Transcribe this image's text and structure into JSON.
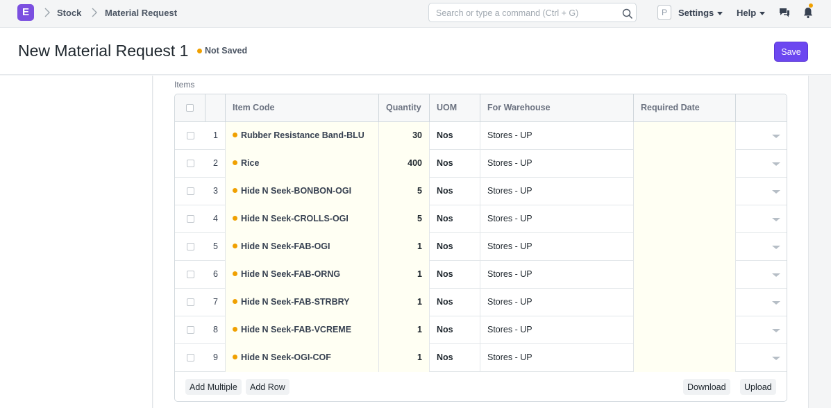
{
  "navbar": {
    "logo_letter": "E",
    "breadcrumbs": [
      "Stock",
      "Material Request"
    ],
    "search_placeholder": "Search or type a command (Ctrl + G)",
    "avatar_letter": "P",
    "settings_label": "Settings",
    "help_label": "Help"
  },
  "page": {
    "title": "New Material Request 1",
    "status": "Not Saved",
    "save_label": "Save"
  },
  "items_section": {
    "label": "Items",
    "columns": [
      "Item Code",
      "Quantity",
      "UOM",
      "For Warehouse",
      "Required Date"
    ],
    "rows": [
      {
        "idx": "1",
        "item_code": "Rubber Resistance Band-BLU",
        "qty": "30",
        "uom": "Nos",
        "warehouse": "Stores - UP",
        "date": ""
      },
      {
        "idx": "2",
        "item_code": "Rice",
        "qty": "400",
        "uom": "Nos",
        "warehouse": "Stores - UP",
        "date": ""
      },
      {
        "idx": "3",
        "item_code": "Hide N Seek-BONBON-OGI",
        "qty": "5",
        "uom": "Nos",
        "warehouse": "Stores - UP",
        "date": ""
      },
      {
        "idx": "4",
        "item_code": "Hide N Seek-CROLLS-OGI",
        "qty": "5",
        "uom": "Nos",
        "warehouse": "Stores - UP",
        "date": ""
      },
      {
        "idx": "5",
        "item_code": "Hide N Seek-FAB-OGI",
        "qty": "1",
        "uom": "Nos",
        "warehouse": "Stores - UP",
        "date": ""
      },
      {
        "idx": "6",
        "item_code": "Hide N Seek-FAB-ORNG",
        "qty": "1",
        "uom": "Nos",
        "warehouse": "Stores - UP",
        "date": ""
      },
      {
        "idx": "7",
        "item_code": "Hide N Seek-FAB-STRBRY",
        "qty": "1",
        "uom": "Nos",
        "warehouse": "Stores - UP",
        "date": ""
      },
      {
        "idx": "8",
        "item_code": "Hide N Seek-FAB-VCREME",
        "qty": "1",
        "uom": "Nos",
        "warehouse": "Stores - UP",
        "date": ""
      },
      {
        "idx": "9",
        "item_code": "Hide N Seek-OGI-COF",
        "qty": "1",
        "uom": "Nos",
        "warehouse": "Stores - UP",
        "date": ""
      }
    ],
    "add_multiple_label": "Add Multiple",
    "add_row_label": "Add Row",
    "download_label": "Download",
    "upload_label": "Upload"
  },
  "colors": {
    "accent": "#6c47f0",
    "status_dot": "#f0a000"
  }
}
